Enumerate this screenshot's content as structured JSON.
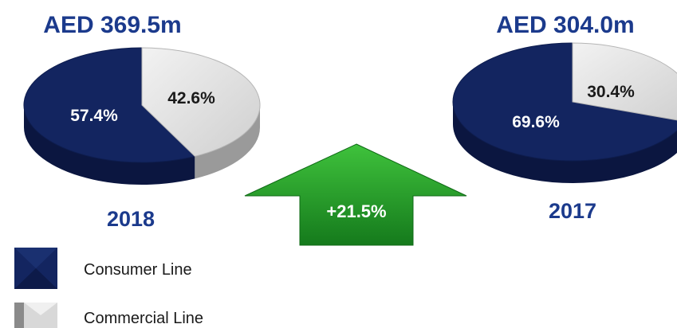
{
  "chart_data": [
    {
      "type": "pie",
      "title": "AED 369.5m",
      "caption": "2018",
      "categories": [
        "Consumer Line",
        "Commercial Line"
      ],
      "values": [
        57.4,
        42.6
      ],
      "labels": [
        "57.4%",
        "42.6%"
      ]
    },
    {
      "type": "pie",
      "title": "AED 304.0m",
      "caption": "2017",
      "categories": [
        "Consumer Line",
        "Commercial Line"
      ],
      "values": [
        69.6,
        30.4
      ],
      "labels": [
        "69.6%",
        "30.4%"
      ]
    }
  ],
  "growth": {
    "label": "+21.5%"
  },
  "legend": [
    {
      "label": "Consumer Line",
      "color": "#132560"
    },
    {
      "label": "Commercial Line",
      "color": "#d8d8d8"
    }
  ],
  "colors": {
    "title": "#1b3a8c",
    "consumer_top": "#132560",
    "consumer_side": "#0b1640",
    "commercial_top": "#d8d8d8",
    "commercial_side": "#9a9a9a",
    "arrow": "#1f9a2a"
  }
}
